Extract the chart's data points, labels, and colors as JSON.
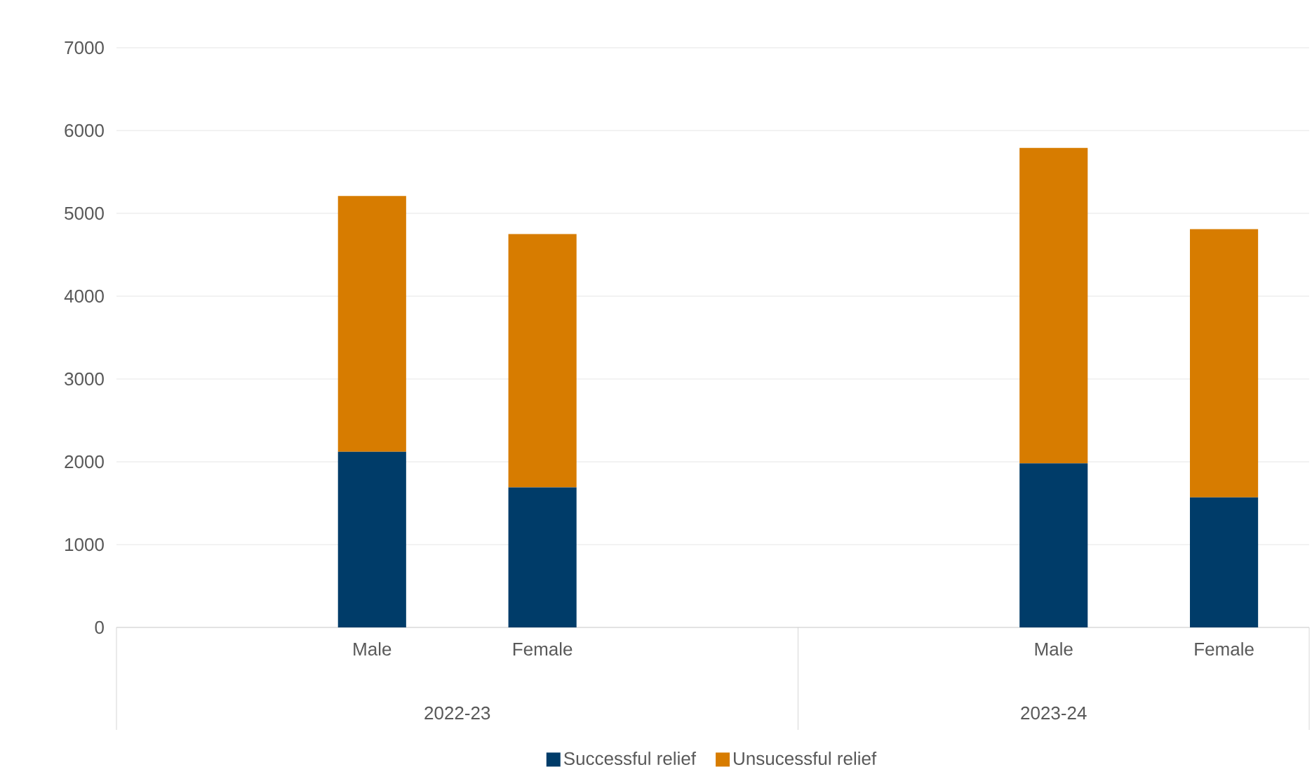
{
  "chart_data": {
    "type": "bar",
    "stacked": true,
    "categories": [
      null,
      "Male",
      "Female",
      null,
      null,
      "Male",
      "Female"
    ],
    "series": [
      {
        "name": "Successful relief",
        "color": "#003c69",
        "values": [
          null,
          2120,
          1690,
          null,
          null,
          1980,
          1570
        ]
      },
      {
        "name": "Unsucessful relief",
        "color": "#d77c00",
        "values": [
          null,
          3090,
          3060,
          null,
          null,
          3810,
          3240
        ]
      }
    ],
    "annotations": [
      "2022-23",
      "2023-24"
    ],
    "ylim": [
      0,
      7000
    ],
    "yticks": [
      0,
      1000,
      2000,
      3000,
      4000,
      5000,
      6000,
      7000
    ],
    "grid": "y",
    "legend": "bottom"
  }
}
